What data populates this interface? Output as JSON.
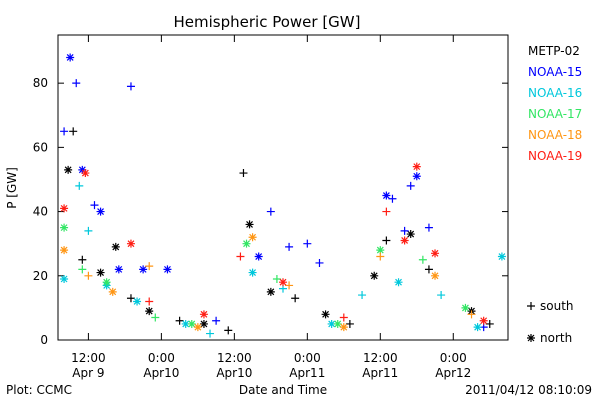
{
  "chart_data": {
    "type": "scatter",
    "title": "Hemispheric Power [GW]",
    "ylabel": "P [GW]",
    "xlabel": "Date and Time",
    "ylim": [
      0,
      95
    ],
    "xlim": [
      "2011-04-09T07:00",
      "2011-04-12T09:00"
    ],
    "yticks": [
      0,
      20,
      40,
      60,
      80
    ],
    "xticks": [
      {
        "t": "2011-04-09T12:00",
        "line1": "12:00",
        "line2": "Apr 9"
      },
      {
        "t": "2011-04-10T00:00",
        "line1": "0:00",
        "line2": "Apr10"
      },
      {
        "t": "2011-04-10T12:00",
        "line1": "12:00",
        "line2": "Apr10"
      },
      {
        "t": "2011-04-11T00:00",
        "line1": "0:00",
        "line2": "Apr11"
      },
      {
        "t": "2011-04-11T12:00",
        "line1": "12:00",
        "line2": "Apr11"
      },
      {
        "t": "2011-04-12T00:00",
        "line1": "0:00",
        "line2": "Apr12"
      }
    ],
    "legend_position": "right",
    "series": [
      {
        "name": "METP-02",
        "color": "#000000",
        "points": [
          {
            "x": "2011-04-09T08:40",
            "y": 53,
            "m": "north"
          },
          {
            "x": "2011-04-09T09:30",
            "y": 65,
            "m": "south"
          },
          {
            "x": "2011-04-09T11:00",
            "y": 25,
            "m": "south"
          },
          {
            "x": "2011-04-09T14:00",
            "y": 21,
            "m": "north"
          },
          {
            "x": "2011-04-09T16:30",
            "y": 29,
            "m": "north"
          },
          {
            "x": "2011-04-09T19:00",
            "y": 13,
            "m": "south"
          },
          {
            "x": "2011-04-09T22:00",
            "y": 9,
            "m": "north"
          },
          {
            "x": "2011-04-10T03:00",
            "y": 6,
            "m": "south"
          },
          {
            "x": "2011-04-10T07:00",
            "y": 5,
            "m": "north"
          },
          {
            "x": "2011-04-10T11:00",
            "y": 3,
            "m": "south"
          },
          {
            "x": "2011-04-10T13:30",
            "y": 52,
            "m": "south"
          },
          {
            "x": "2011-04-10T14:30",
            "y": 36,
            "m": "north"
          },
          {
            "x": "2011-04-10T18:00",
            "y": 15,
            "m": "north"
          },
          {
            "x": "2011-04-10T22:00",
            "y": 13,
            "m": "south"
          },
          {
            "x": "2011-04-11T03:00",
            "y": 8,
            "m": "north"
          },
          {
            "x": "2011-04-11T07:00",
            "y": 5,
            "m": "south"
          },
          {
            "x": "2011-04-11T11:00",
            "y": 20,
            "m": "north"
          },
          {
            "x": "2011-04-11T13:00",
            "y": 31,
            "m": "south"
          },
          {
            "x": "2011-04-11T17:00",
            "y": 33,
            "m": "north"
          },
          {
            "x": "2011-04-11T20:00",
            "y": 22,
            "m": "south"
          },
          {
            "x": "2011-04-12T03:00",
            "y": 9,
            "m": "north"
          },
          {
            "x": "2011-04-12T06:00",
            "y": 5,
            "m": "south"
          }
        ]
      },
      {
        "name": "NOAA-15",
        "color": "#0000ff",
        "points": [
          {
            "x": "2011-04-09T08:00",
            "y": 65,
            "m": "south"
          },
          {
            "x": "2011-04-09T09:00",
            "y": 88,
            "m": "north"
          },
          {
            "x": "2011-04-09T10:00",
            "y": 80,
            "m": "south"
          },
          {
            "x": "2011-04-09T11:00",
            "y": 53,
            "m": "north"
          },
          {
            "x": "2011-04-09T13:00",
            "y": 42,
            "m": "south"
          },
          {
            "x": "2011-04-09T14:00",
            "y": 40,
            "m": "north"
          },
          {
            "x": "2011-04-09T17:00",
            "y": 22,
            "m": "north"
          },
          {
            "x": "2011-04-09T19:00",
            "y": 79,
            "m": "south"
          },
          {
            "x": "2011-04-09T21:00",
            "y": 22,
            "m": "north"
          },
          {
            "x": "2011-04-10T01:00",
            "y": 22,
            "m": "north"
          },
          {
            "x": "2011-04-10T09:00",
            "y": 6,
            "m": "south"
          },
          {
            "x": "2011-04-10T16:00",
            "y": 26,
            "m": "north"
          },
          {
            "x": "2011-04-10T18:00",
            "y": 40,
            "m": "south"
          },
          {
            "x": "2011-04-10T21:00",
            "y": 29,
            "m": "south"
          },
          {
            "x": "2011-04-11T00:00",
            "y": 30,
            "m": "south"
          },
          {
            "x": "2011-04-11T02:00",
            "y": 24,
            "m": "south"
          },
          {
            "x": "2011-04-11T13:00",
            "y": 45,
            "m": "north"
          },
          {
            "x": "2011-04-11T14:00",
            "y": 44,
            "m": "south"
          },
          {
            "x": "2011-04-11T16:00",
            "y": 34,
            "m": "south"
          },
          {
            "x": "2011-04-11T17:00",
            "y": 48,
            "m": "south"
          },
          {
            "x": "2011-04-11T18:00",
            "y": 51,
            "m": "north"
          },
          {
            "x": "2011-04-11T20:00",
            "y": 35,
            "m": "south"
          },
          {
            "x": "2011-04-12T05:00",
            "y": 4,
            "m": "south"
          }
        ]
      },
      {
        "name": "NOAA-16",
        "color": "#00c8dc",
        "points": [
          {
            "x": "2011-04-09T08:00",
            "y": 19,
            "m": "north"
          },
          {
            "x": "2011-04-09T10:30",
            "y": 48,
            "m": "south"
          },
          {
            "x": "2011-04-09T12:00",
            "y": 34,
            "m": "south"
          },
          {
            "x": "2011-04-09T15:00",
            "y": 17,
            "m": "north"
          },
          {
            "x": "2011-04-09T20:00",
            "y": 12,
            "m": "north"
          },
          {
            "x": "2011-04-10T04:00",
            "y": 5,
            "m": "north"
          },
          {
            "x": "2011-04-10T08:00",
            "y": 2,
            "m": "south"
          },
          {
            "x": "2011-04-10T15:00",
            "y": 21,
            "m": "north"
          },
          {
            "x": "2011-04-10T20:00",
            "y": 16,
            "m": "south"
          },
          {
            "x": "2011-04-11T04:00",
            "y": 5,
            "m": "north"
          },
          {
            "x": "2011-04-11T09:00",
            "y": 14,
            "m": "south"
          },
          {
            "x": "2011-04-11T15:00",
            "y": 18,
            "m": "north"
          },
          {
            "x": "2011-04-11T22:00",
            "y": 14,
            "m": "south"
          },
          {
            "x": "2011-04-12T04:00",
            "y": 4,
            "m": "north"
          },
          {
            "x": "2011-04-12T08:00",
            "y": 26,
            "m": "north"
          }
        ]
      },
      {
        "name": "NOAA-17",
        "color": "#32e664",
        "points": [
          {
            "x": "2011-04-09T08:00",
            "y": 35,
            "m": "north"
          },
          {
            "x": "2011-04-09T11:00",
            "y": 22,
            "m": "south"
          },
          {
            "x": "2011-04-09T15:00",
            "y": 18,
            "m": "north"
          },
          {
            "x": "2011-04-09T23:00",
            "y": 7,
            "m": "south"
          },
          {
            "x": "2011-04-10T05:00",
            "y": 5,
            "m": "north"
          },
          {
            "x": "2011-04-10T14:00",
            "y": 30,
            "m": "north"
          },
          {
            "x": "2011-04-10T19:00",
            "y": 19,
            "m": "south"
          },
          {
            "x": "2011-04-11T05:00",
            "y": 5,
            "m": "north"
          },
          {
            "x": "2011-04-11T12:00",
            "y": 28,
            "m": "north"
          },
          {
            "x": "2011-04-11T19:00",
            "y": 25,
            "m": "south"
          },
          {
            "x": "2011-04-12T02:00",
            "y": 10,
            "m": "north"
          }
        ]
      },
      {
        "name": "NOAA-18",
        "color": "#ff9614",
        "points": [
          {
            "x": "2011-04-09T08:00",
            "y": 28,
            "m": "north"
          },
          {
            "x": "2011-04-09T12:00",
            "y": 20,
            "m": "south"
          },
          {
            "x": "2011-04-09T16:00",
            "y": 15,
            "m": "north"
          },
          {
            "x": "2011-04-09T22:00",
            "y": 23,
            "m": "south"
          },
          {
            "x": "2011-04-10T06:00",
            "y": 4,
            "m": "north"
          },
          {
            "x": "2011-04-10T15:00",
            "y": 32,
            "m": "north"
          },
          {
            "x": "2011-04-10T21:00",
            "y": 17,
            "m": "south"
          },
          {
            "x": "2011-04-11T06:00",
            "y": 4,
            "m": "north"
          },
          {
            "x": "2011-04-11T12:00",
            "y": 26,
            "m": "south"
          },
          {
            "x": "2011-04-11T21:00",
            "y": 20,
            "m": "north"
          },
          {
            "x": "2011-04-12T03:00",
            "y": 8,
            "m": "south"
          }
        ]
      },
      {
        "name": "NOAA-19",
        "color": "#ff1e14",
        "points": [
          {
            "x": "2011-04-09T08:00",
            "y": 41,
            "m": "north"
          },
          {
            "x": "2011-04-09T11:30",
            "y": 52,
            "m": "north"
          },
          {
            "x": "2011-04-09T19:00",
            "y": 30,
            "m": "north"
          },
          {
            "x": "2011-04-09T22:00",
            "y": 12,
            "m": "south"
          },
          {
            "x": "2011-04-10T07:00",
            "y": 8,
            "m": "north"
          },
          {
            "x": "2011-04-10T13:00",
            "y": 26,
            "m": "south"
          },
          {
            "x": "2011-04-10T20:00",
            "y": 18,
            "m": "north"
          },
          {
            "x": "2011-04-11T06:00",
            "y": 7,
            "m": "south"
          },
          {
            "x": "2011-04-11T13:00",
            "y": 40,
            "m": "south"
          },
          {
            "x": "2011-04-11T16:00",
            "y": 31,
            "m": "north"
          },
          {
            "x": "2011-04-11T18:00",
            "y": 54,
            "m": "north"
          },
          {
            "x": "2011-04-11T21:00",
            "y": 27,
            "m": "north"
          },
          {
            "x": "2011-04-12T05:00",
            "y": 6,
            "m": "north"
          }
        ]
      }
    ],
    "marker_legend": [
      {
        "symbol": "+",
        "label": "south"
      },
      {
        "symbol": "*",
        "label": "north"
      }
    ]
  },
  "footer": {
    "left": "Plot: CCMC",
    "right": "2011/04/12 08:10:09"
  }
}
